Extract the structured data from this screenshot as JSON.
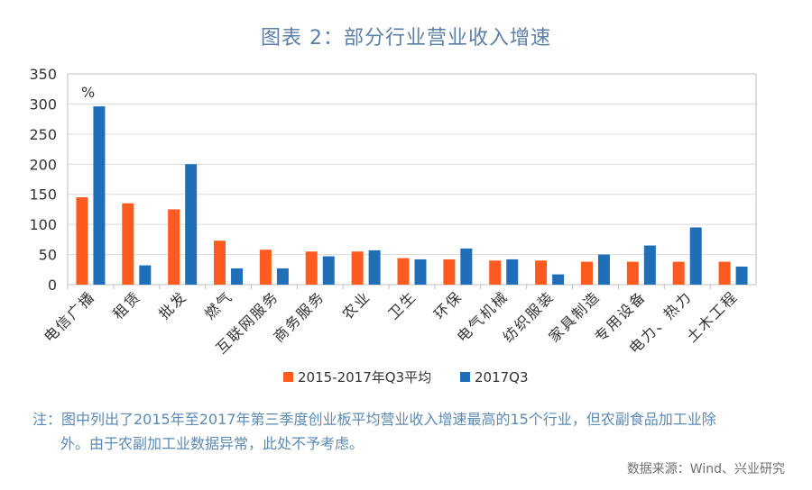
{
  "title": "图表 2：部分行业营业收入增速",
  "note_line1": "注：图中列出了2015年至2017年第三季度创业板平均营业收入增速最高的15个行业，但农副食品加工业除",
  "note_line2": "外。由于农副加工业数据异常，此处不予考虑。",
  "source": "数据来源：Wind、兴业研究",
  "colors": {
    "series1": "#ff5a1f",
    "series2": "#1f6fb8",
    "grid": "#d9d9d9",
    "axis_text": "#333333"
  },
  "chart_data": {
    "type": "bar",
    "unit_label": "%",
    "ylim": [
      0,
      350
    ],
    "yticks": [
      0,
      50,
      100,
      150,
      200,
      250,
      300,
      350
    ],
    "grid": true,
    "legend_position": "bottom",
    "categories": [
      "电信广播",
      "租赁",
      "批发",
      "燃气",
      "互联网服务",
      "商务服务",
      "农业",
      "卫生",
      "环保",
      "电气机械",
      "纺织服装",
      "家具制造",
      "专用设备",
      "电力、热力",
      "土木工程"
    ],
    "series": [
      {
        "name": "2015-2017年Q3平均",
        "values": [
          145,
          135,
          125,
          73,
          58,
          55,
          55,
          44,
          42,
          40,
          40,
          38,
          38,
          38,
          38
        ]
      },
      {
        "name": "2017Q3",
        "values": [
          296,
          32,
          200,
          27,
          27,
          47,
          57,
          42,
          60,
          42,
          17,
          50,
          65,
          95,
          30
        ]
      }
    ]
  }
}
